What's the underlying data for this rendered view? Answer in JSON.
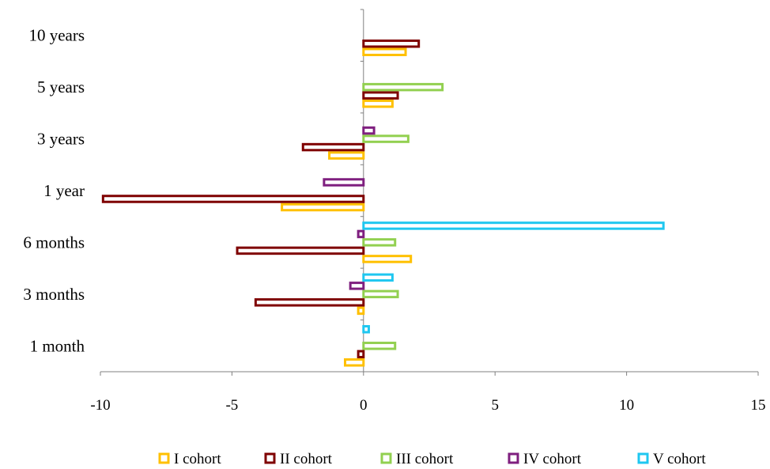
{
  "chart_data": {
    "type": "bar",
    "orientation": "horizontal",
    "title": "",
    "xlabel": "",
    "ylabel": "",
    "categories": [
      "1 month",
      "3 months",
      "6 months",
      "1 year",
      "3 years",
      "5 years",
      "10 years"
    ],
    "xlim": [
      -10,
      15
    ],
    "xticks": [
      "-10",
      "-5",
      "0",
      "5",
      "10",
      "15"
    ],
    "grid": false,
    "legend_position": "bottom",
    "series": [
      {
        "name": "I cohort",
        "color": "#FFC000",
        "values": [
          -0.7,
          -0.2,
          1.8,
          -3.1,
          -1.3,
          1.1,
          1.6
        ]
      },
      {
        "name": "II cohort",
        "color": "#7F0000",
        "values": [
          -0.2,
          -4.1,
          -4.8,
          -9.9,
          -2.3,
          1.3,
          2.1
        ]
      },
      {
        "name": "III cohort",
        "color": "#92D050",
        "values": [
          1.2,
          1.3,
          1.2,
          null,
          1.7,
          3.0,
          null
        ]
      },
      {
        "name": "IV cohort",
        "color": "#7F1F7F",
        "values": [
          null,
          -0.5,
          -0.2,
          -1.5,
          0.4,
          null,
          null
        ]
      },
      {
        "name": "V cohort",
        "color": "#1FC7F0",
        "values": [
          0.2,
          1.1,
          11.4,
          null,
          null,
          null,
          null
        ]
      }
    ]
  }
}
